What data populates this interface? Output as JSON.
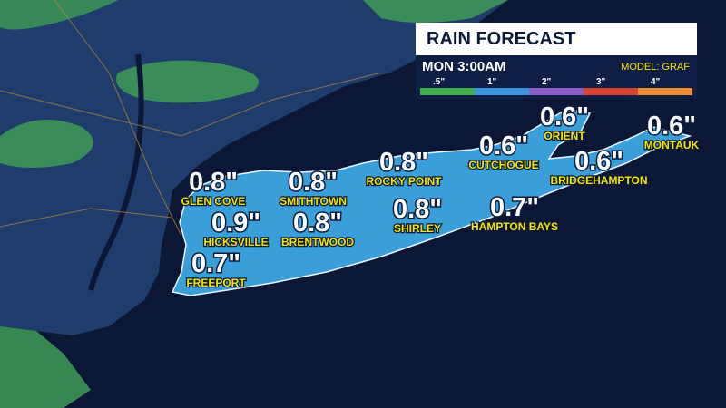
{
  "header": {
    "title": "RAIN FORECAST",
    "time": "MON 3:00AM",
    "model": "MODEL: GRAF"
  },
  "legend": [
    {
      "label": ".5\"",
      "color": "#3fae4a"
    },
    {
      "label": "1\"",
      "color": "#3a95dc"
    },
    {
      "label": "2\"",
      "color": "#8a5cc8"
    },
    {
      "label": "3\"",
      "color": "#d8412f"
    },
    {
      "label": "4\"",
      "color": "#f08a30"
    }
  ],
  "locations": [
    {
      "name": "GLEN COVE",
      "amount": "0.8\""
    },
    {
      "name": "SMITHTOWN",
      "amount": "0.8\""
    },
    {
      "name": "ROCKY POINT",
      "amount": "0.8\""
    },
    {
      "name": "CUTCHOGUE",
      "amount": "0.6\""
    },
    {
      "name": "ORIENT",
      "amount": "0.6\""
    },
    {
      "name": "MONTAUK",
      "amount": "0.6\""
    },
    {
      "name": "HICKSVILLE",
      "amount": "0.9\""
    },
    {
      "name": "BRENTWOOD",
      "amount": "0.8\""
    },
    {
      "name": "SHIRLEY",
      "amount": "0.8\""
    },
    {
      "name": "HAMPTON BAYS",
      "amount": "0.7\""
    },
    {
      "name": "BRIDGEHAMPTON",
      "amount": "0.6\""
    },
    {
      "name": "FREEPORT",
      "amount": "0.7\""
    }
  ]
}
